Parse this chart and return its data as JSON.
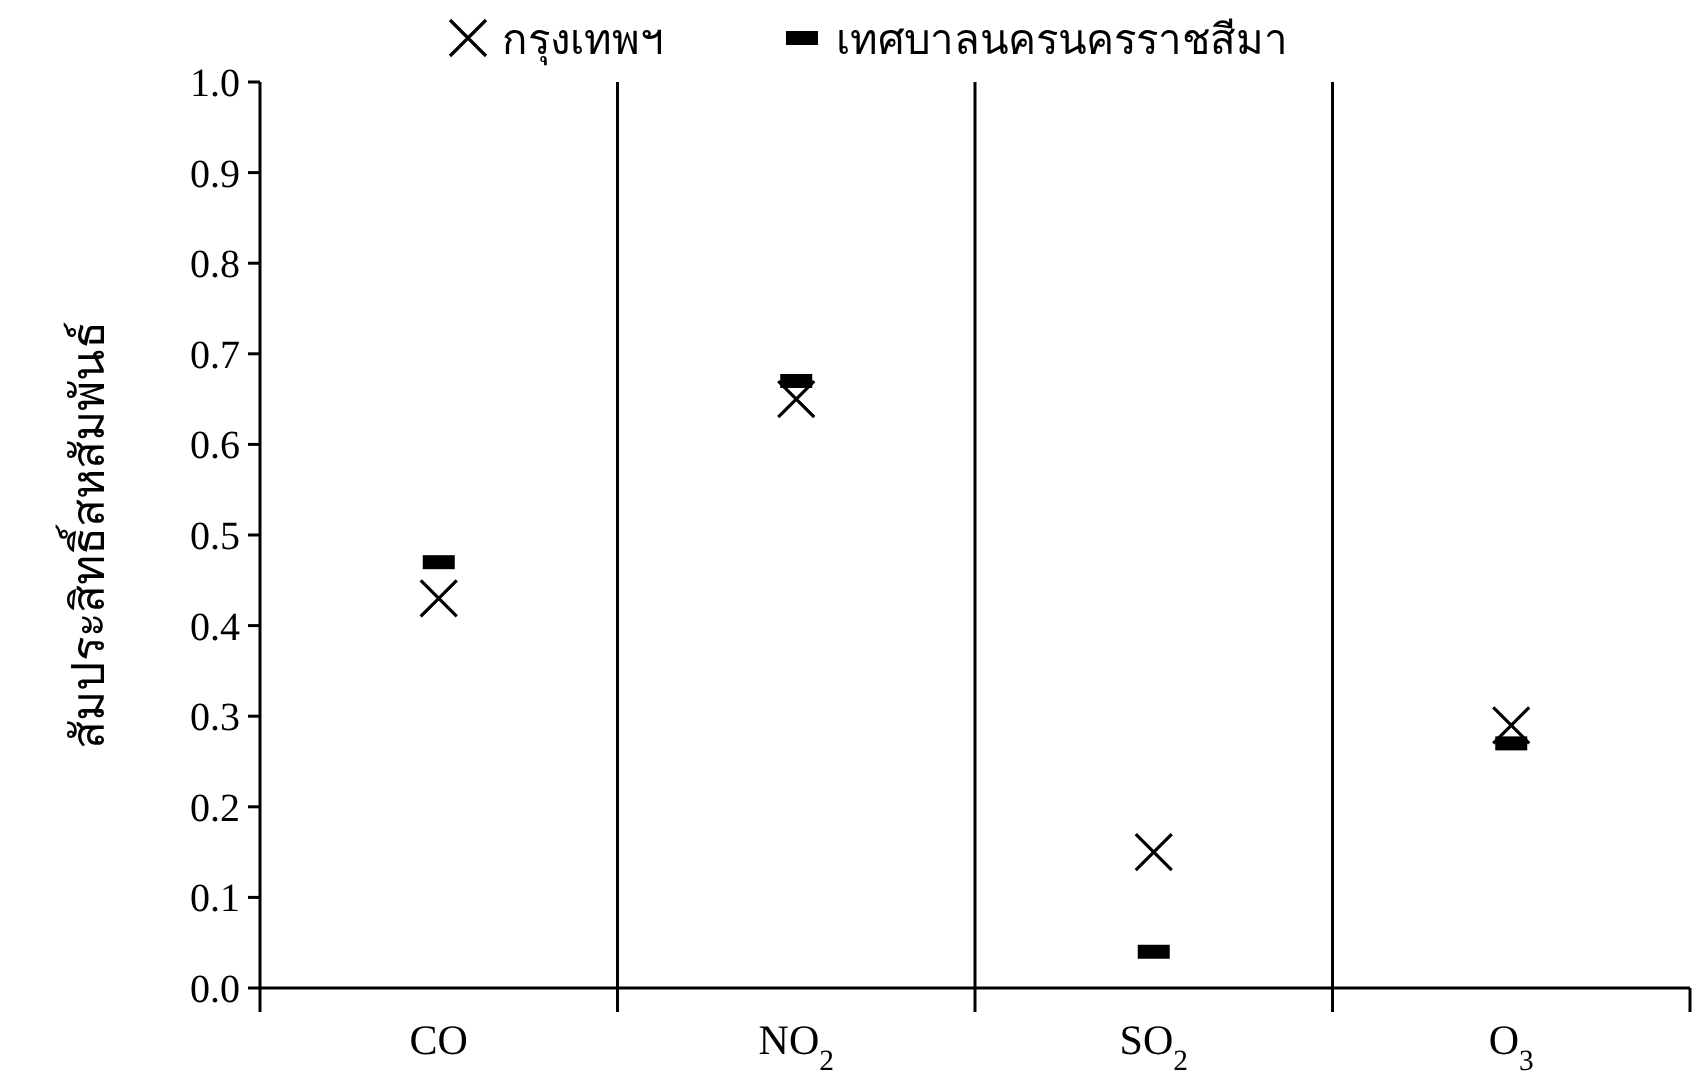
{
  "chart_data": {
    "type": "scatter",
    "ylabel": "สัมประสิทธิ์สหสัมพันธ์",
    "categories": [
      "CO",
      "NO$_{2}$",
      "SO$_{2}$",
      "O$_{3}$"
    ],
    "series": [
      {
        "name": "กรุงเทพฯ",
        "color": "#000000",
        "marker": "cross",
        "values": [
          0.43,
          0.65,
          0.15,
          0.29
        ]
      },
      {
        "name": "เทศบาลนครนครราชสีมา",
        "color": "#000000",
        "marker": "square",
        "values": [
          0.47,
          0.67,
          0.04,
          0.27
        ]
      }
    ],
    "ylim": [
      0,
      1
    ],
    "yticks": [
      {
        "value": 0,
        "label": "0.0"
      },
      {
        "value": 0.1,
        "label": "0.1"
      },
      {
        "value": 0.2,
        "label": "0.2"
      },
      {
        "value": 0.3,
        "label": "0.3"
      },
      {
        "value": 0.4,
        "label": "0.4"
      },
      {
        "value": 0.5,
        "label": "0.5"
      },
      {
        "value": 0.6,
        "label": "0.6"
      },
      {
        "value": 0.7,
        "label": "0.7"
      },
      {
        "value": 0.8,
        "label": "0.8"
      },
      {
        "value": 0.9,
        "label": "0.9"
      },
      {
        "value": 1,
        "label": "1.0"
      }
    ],
    "grid": "x",
    "legend": "top"
  }
}
